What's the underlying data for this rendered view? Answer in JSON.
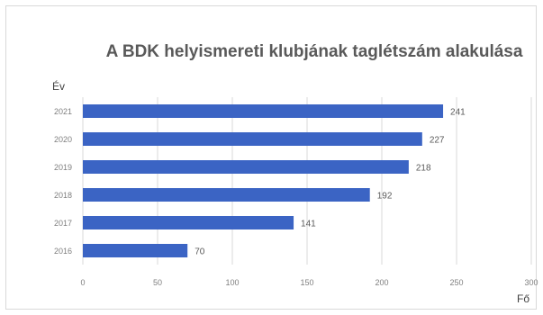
{
  "chart_data": {
    "type": "bar",
    "orientation": "horizontal",
    "title": "A BDK helyismereti klubjának taglétszám alakulása",
    "ylabel": "Év",
    "xlabel": "Fő",
    "categories": [
      "2021",
      "2020",
      "2019",
      "2018",
      "2017",
      "2016"
    ],
    "series": [
      {
        "values": [
          241,
          227,
          218,
          192,
          141,
          70
        ]
      }
    ],
    "xlim": [
      0,
      300
    ],
    "xticks": [
      0,
      50,
      100,
      150,
      200,
      250,
      300
    ],
    "grid": true,
    "legend": "none",
    "bar_color": "#3b64c4"
  }
}
